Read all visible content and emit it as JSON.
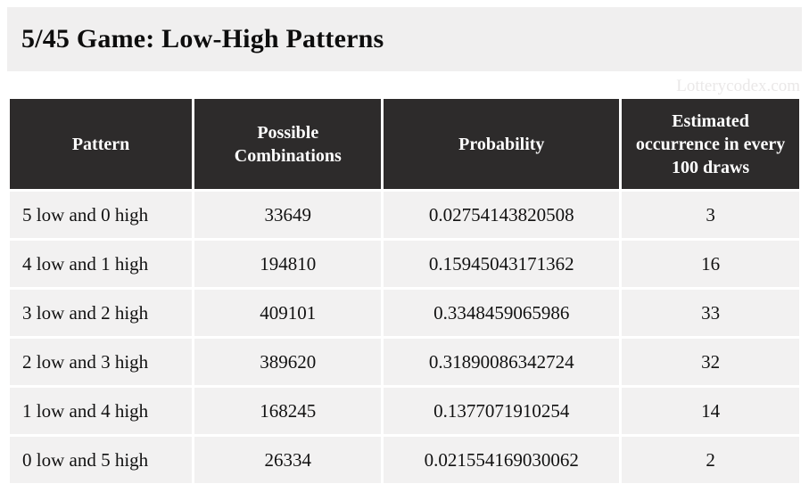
{
  "page": {
    "title": "5/45 Game: Low-High Patterns",
    "watermark": "Lotterycodex.com"
  },
  "colors": {
    "banner_bg": "#f0efef",
    "header_bg": "#2d2b2b",
    "header_text": "#ffffff",
    "row_bg": "#f2f1f1",
    "watermark_text": "#eae8e8"
  },
  "table": {
    "columns": [
      "Pattern",
      "Possible Combinations",
      "Probability",
      "Estimated occurrence in every 100 draws"
    ],
    "rows": [
      [
        "5 low and 0 high",
        "33649",
        "0.02754143820508",
        "3"
      ],
      [
        "4 low and 1 high",
        "194810",
        "0.15945043171362",
        "16"
      ],
      [
        "3 low and 2 high",
        "409101",
        "0.3348459065986",
        "33"
      ],
      [
        "2 low and 3 high",
        "389620",
        "0.31890086342724",
        "32"
      ],
      [
        "1 low and 4 high",
        "168245",
        "0.1377071910254",
        "14"
      ],
      [
        "0 low and 5 high",
        "26334",
        "0.021554169030062",
        "2"
      ]
    ]
  },
  "chart_data": {
    "type": "table",
    "title": "5/45 Game: Low-High Patterns",
    "columns": [
      "Pattern",
      "Possible Combinations",
      "Probability",
      "Estimated occurrence in every 100 draws"
    ],
    "rows": [
      [
        "5 low and 0 high",
        33649,
        0.02754143820508,
        3
      ],
      [
        "4 low and 1 high",
        194810,
        0.15945043171362,
        16
      ],
      [
        "3 low and 2 high",
        409101,
        0.3348459065986,
        33
      ],
      [
        "2 low and 3 high",
        389620,
        0.31890086342724,
        32
      ],
      [
        "1 low and 4 high",
        168245,
        0.1377071910254,
        14
      ],
      [
        "0 low and 5 high",
        26334,
        0.021554169030062,
        2
      ]
    ]
  }
}
